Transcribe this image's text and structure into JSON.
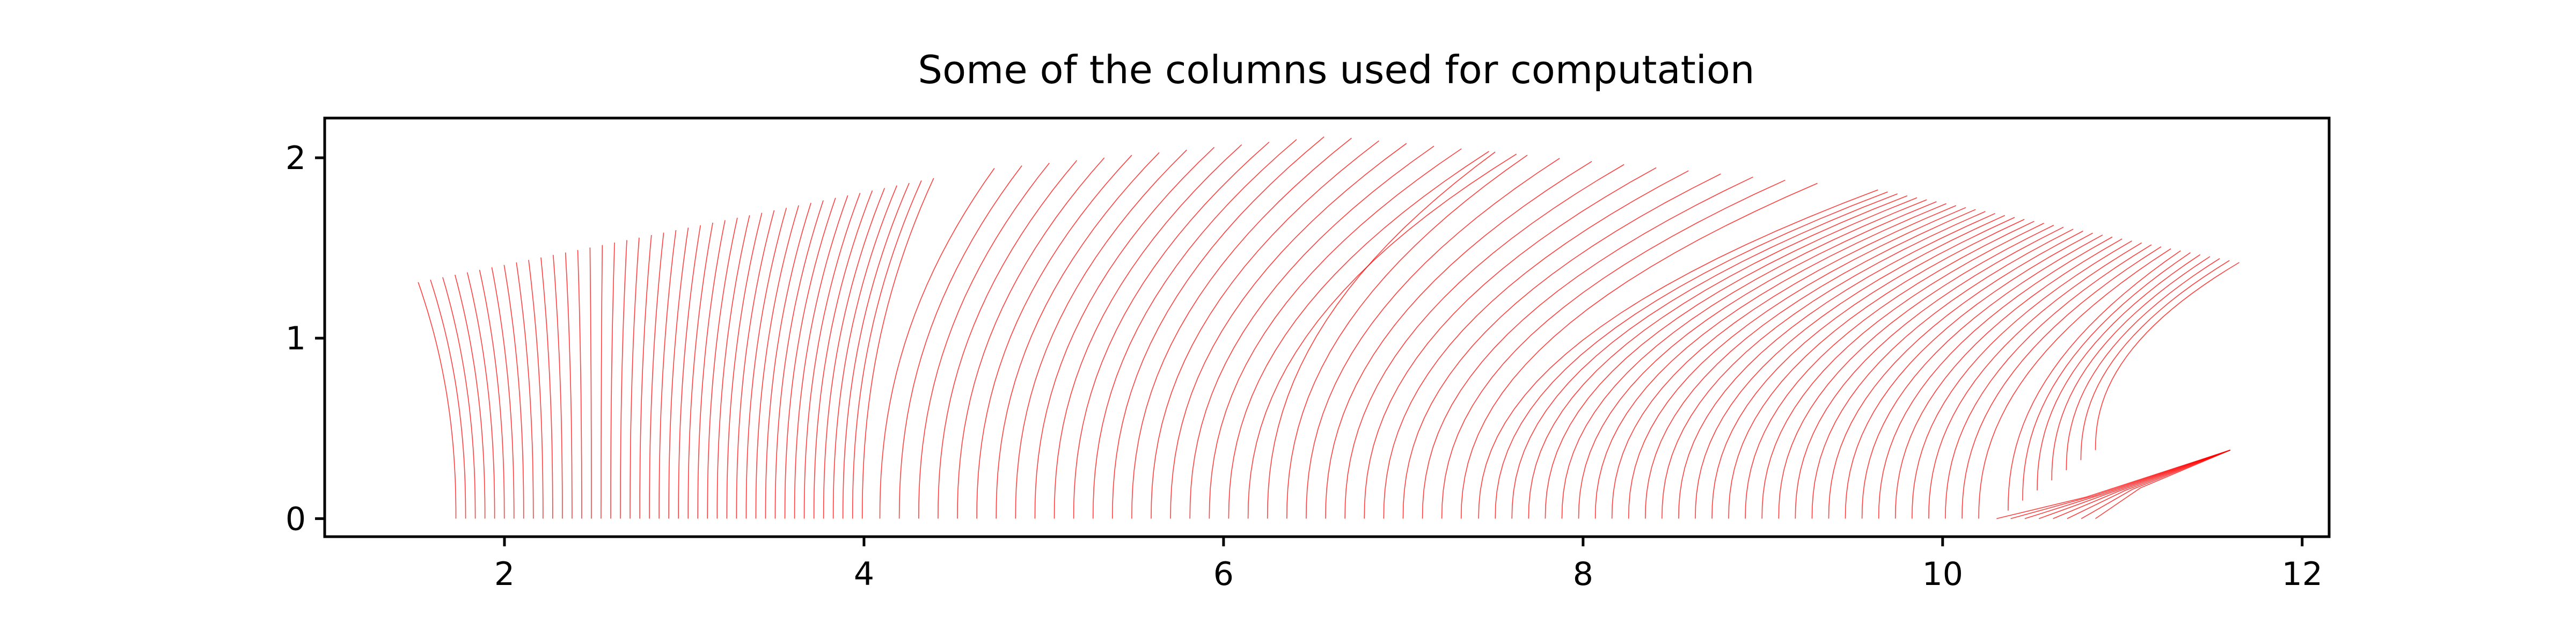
{
  "chart_data": {
    "type": "line",
    "title": "Some of the columns used for computation",
    "xlabel": "",
    "ylabel": "",
    "xlim": [
      1.0,
      12.15
    ],
    "ylim": [
      -0.1,
      2.22
    ],
    "x_ticks": [
      2,
      4,
      6,
      8,
      10,
      12
    ],
    "y_ticks": [
      0,
      1,
      2
    ],
    "x_tick_labels": [
      "2",
      "4",
      "6",
      "8",
      "10",
      "12"
    ],
    "y_tick_labels": [
      "0",
      "1",
      "2"
    ],
    "grid": false,
    "legend": "none",
    "line_color": "#ff0000",
    "series_description_points": {
      "left_group_base_x": [
        1.73,
        4.0
      ],
      "left_group_top": [
        [
          1.52,
          1.31
        ],
        [
          4.4,
          1.86
        ]
      ],
      "middle_group_base_x": [
        4.0,
        7.35
      ],
      "middle_group_top": [
        [
          4.6,
          1.93
        ],
        [
          6.6,
          2.12
        ],
        [
          9.35,
          1.87
        ]
      ],
      "right_group_base_x": [
        7.35,
        10.85
      ],
      "right_group_top": [
        [
          9.6,
          1.83
        ],
        [
          11.6,
          1.42
        ]
      ],
      "column_count": 112
    }
  }
}
